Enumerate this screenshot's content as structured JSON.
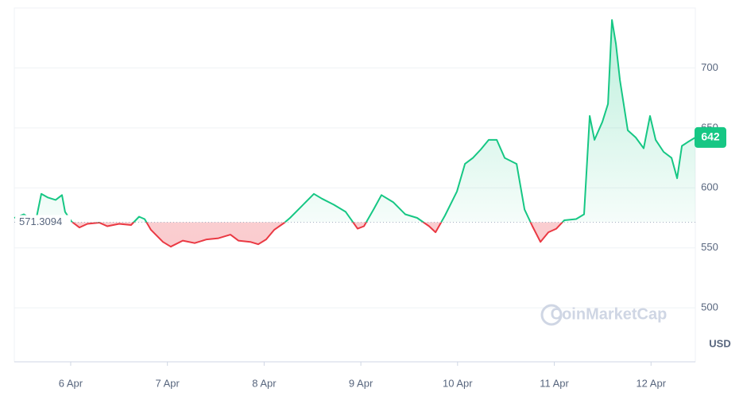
{
  "chart_data": {
    "type": "line",
    "x": [
      5.417,
      5.515,
      5.638,
      5.696,
      5.762,
      5.844,
      5.91,
      5.942,
      6.008,
      6.09,
      6.173,
      6.296,
      6.378,
      6.501,
      6.624,
      6.707,
      6.764,
      6.83,
      6.953,
      7.035,
      7.159,
      7.282,
      7.405,
      7.528,
      7.652,
      7.734,
      7.857,
      7.939,
      8.021,
      8.104,
      8.21,
      8.268,
      8.391,
      8.514,
      8.597,
      8.72,
      8.843,
      8.966,
      9.032,
      9.131,
      9.213,
      9.336,
      9.459,
      9.582,
      9.706,
      9.772,
      9.87,
      9.993,
      10.076,
      10.158,
      10.24,
      10.322,
      10.405,
      10.487,
      10.61,
      10.692,
      10.774,
      10.857,
      10.939,
      11.021,
      11.103,
      11.226,
      11.308,
      11.366,
      11.415,
      11.497,
      11.555,
      11.596,
      11.637,
      11.678,
      11.76,
      11.842,
      11.924,
      11.99,
      12.048,
      12.13,
      12.212,
      12.27,
      12.319,
      12.377,
      12.458
    ],
    "series": [
      {
        "values": [
          575,
          578,
          572,
          595,
          592,
          590,
          594,
          580,
          572,
          567,
          570,
          571,
          568,
          570,
          569,
          576,
          574,
          565,
          555,
          551,
          556,
          554,
          557,
          558,
          561,
          556,
          555,
          553,
          557,
          565,
          571,
          575,
          585,
          595,
          591,
          586,
          580,
          566,
          568,
          582,
          594,
          588,
          578,
          575,
          568,
          563,
          577,
          597,
          620,
          625,
          632,
          640,
          640,
          625,
          620,
          582,
          568,
          555,
          563,
          566,
          573,
          574,
          578,
          660,
          640,
          655,
          670,
          740,
          720,
          690,
          648,
          642,
          633,
          660,
          640,
          630,
          625,
          608,
          635,
          638,
          642
        ]
      }
    ],
    "up_color": "#16c784",
    "down_color": "#ea3943",
    "baseline": 571.3094,
    "last_price": 642,
    "unit": "USD",
    "watermark": "CoinMarketCap",
    "xlim": [
      5.417,
      12.458
    ],
    "xticks": [
      {
        "value": 6,
        "label": "6 Apr"
      },
      {
        "value": 7,
        "label": "7 Apr"
      },
      {
        "value": 8,
        "label": "8 Apr"
      },
      {
        "value": 9,
        "label": "9 Apr"
      },
      {
        "value": 10,
        "label": "10 Apr"
      },
      {
        "value": 11,
        "label": "11 Apr"
      },
      {
        "value": 12,
        "label": "12 Apr"
      }
    ],
    "ylim": [
      455,
      750
    ],
    "yticks": [
      500,
      550,
      600,
      650,
      700
    ],
    "grid": true
  }
}
